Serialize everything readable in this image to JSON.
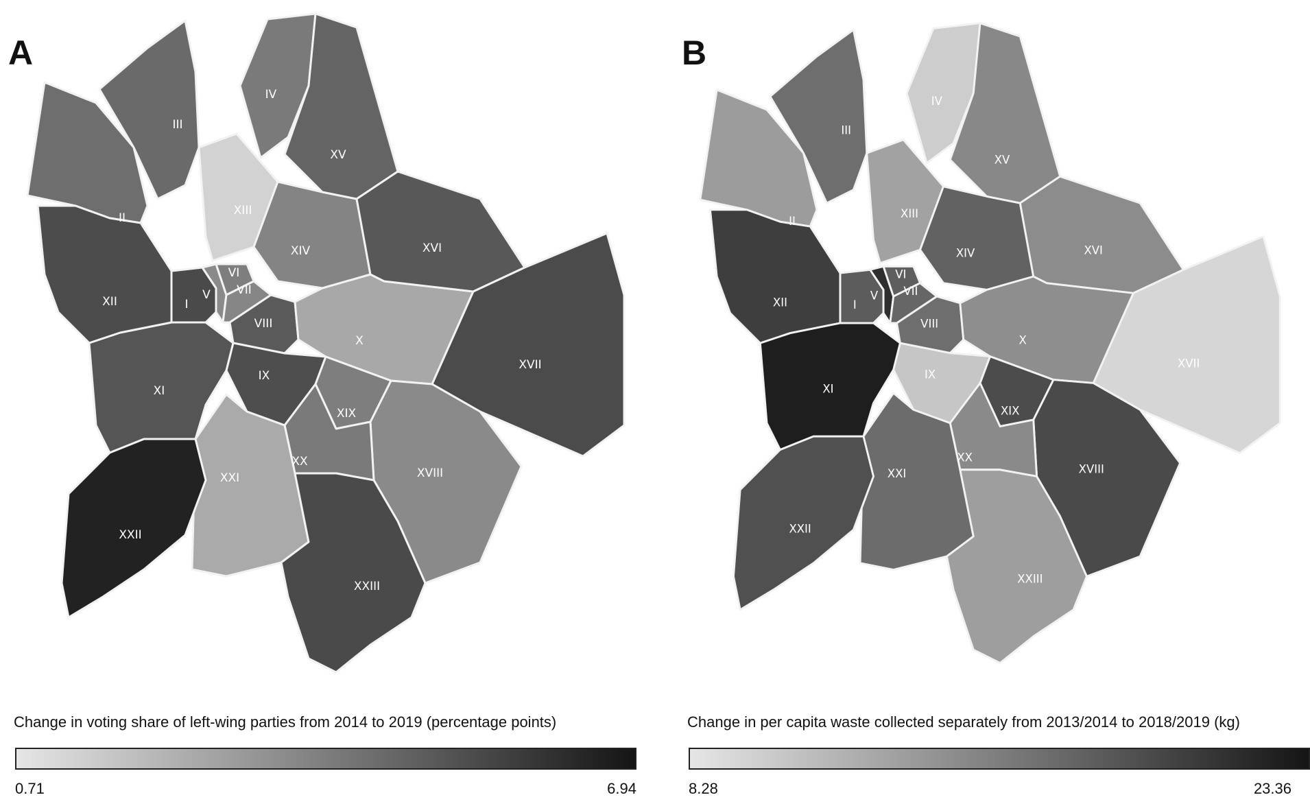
{
  "panel_a": {
    "letter": "A",
    "legend_title": "Change in voting share of left-wing parties from 2014 to 2019 (percentage points)",
    "legend_min": "0.71",
    "legend_max": "6.94",
    "legend_gradient": [
      "#e6e6e6",
      "#151515"
    ],
    "district_fills": {
      "I": "#4a4a4a",
      "II": "#6e6e6e",
      "III": "#6a6a6a",
      "IV": "#7a7a7a",
      "V": "#8a8a8a",
      "VI": "#7e7e7e",
      "VII": "#868686",
      "VIII": "#5a5a5a",
      "IX": "#4e4e4e",
      "X": "#a8a8a8",
      "XI": "#555555",
      "XII": "#4c4c4c",
      "XIII": "#d2d2d2",
      "XIV": "#848484",
      "XV": "#646464",
      "XVI": "#585858",
      "XVII": "#4b4b4b",
      "XVIII": "#8a8a8a",
      "XIX": "#7e7e7e",
      "XX": "#7a7a7a",
      "XXI": "#aaaaaa",
      "XXII": "#222222",
      "XXIII": "#4a4a4a"
    }
  },
  "panel_b": {
    "letter": "B",
    "legend_title": "Change in per capita waste collected separately from 2013/2014 to 2018/2019 (kg)",
    "legend_min": "8.28",
    "legend_max": "23.36",
    "legend_gradient": [
      "#e6e6e6",
      "#151515"
    ],
    "district_fills": {
      "I": "#5c5c5c",
      "II": "#9c9c9c",
      "III": "#6e6e6e",
      "IV": "#cdcdcd",
      "V": "#2e2e2e",
      "VI": "#5e5e5e",
      "VII": "#666666",
      "VIII": "#6e6e6e",
      "IX": "#c6c6c6",
      "X": "#8e8e8e",
      "XI": "#1e1e1e",
      "XII": "#3e3e3e",
      "XIII": "#a2a2a2",
      "XIV": "#626262",
      "XV": "#888888",
      "XVI": "#8c8c8c",
      "XVII": "#d6d6d6",
      "XVIII": "#4a4a4a",
      "XIX": "#4c4c4c",
      "XX": "#8a8a8a",
      "XXI": "#6c6c6c",
      "XXII": "#505050",
      "XXIII": "#9e9e9e"
    }
  },
  "district_labels": [
    "I",
    "II",
    "III",
    "IV",
    "V",
    "VI",
    "VII",
    "VIII",
    "IX",
    "X",
    "XI",
    "XII",
    "XIII",
    "XIV",
    "XV",
    "XVI",
    "XVII",
    "XVIII",
    "XIX",
    "XX",
    "XXI",
    "XXII",
    "XXIII"
  ]
}
